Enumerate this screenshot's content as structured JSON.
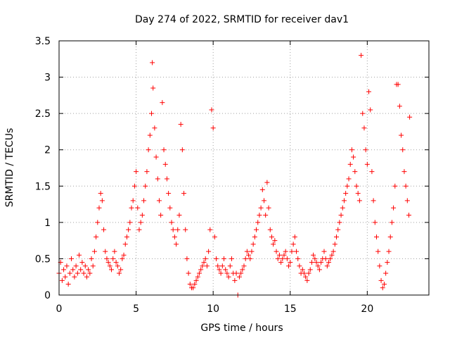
{
  "chart_data": {
    "type": "scatter",
    "title": "Day 274 of 2022, SRMTID for receiver dav1",
    "xlabel": "GPS time / hours",
    "ylabel": "SRMTID / TECUs",
    "xlim": [
      0,
      24
    ],
    "ylim": [
      0,
      3.5
    ],
    "x_ticks": [
      0,
      5,
      10,
      15,
      20
    ],
    "x_tick_labels": [
      "0",
      "5",
      "10",
      "15",
      "20"
    ],
    "y_ticks": [
      0,
      0.5,
      1,
      1.5,
      2,
      2.5,
      3,
      3.5
    ],
    "y_tick_labels": [
      "0",
      "0.5",
      "1",
      "1.5",
      "2",
      "2.5",
      "3",
      "3.5"
    ],
    "grid": true,
    "marker": "plus",
    "marker_color": "#ff0000",
    "series": [
      {
        "name": "SRMTID",
        "points": [
          [
            0.0,
            0.3
          ],
          [
            0.1,
            0.45
          ],
          [
            0.2,
            0.2
          ],
          [
            0.3,
            0.35
          ],
          [
            0.4,
            0.25
          ],
          [
            0.5,
            0.4
          ],
          [
            0.6,
            0.15
          ],
          [
            0.7,
            0.3
          ],
          [
            0.8,
            0.5
          ],
          [
            0.9,
            0.35
          ],
          [
            1.0,
            0.25
          ],
          [
            1.1,
            0.4
          ],
          [
            1.2,
            0.3
          ],
          [
            1.3,
            0.55
          ],
          [
            1.4,
            0.35
          ],
          [
            1.5,
            0.45
          ],
          [
            1.6,
            0.3
          ],
          [
            1.7,
            0.4
          ],
          [
            1.8,
            0.25
          ],
          [
            1.9,
            0.35
          ],
          [
            2.0,
            0.3
          ],
          [
            2.1,
            0.5
          ],
          [
            2.2,
            0.4
          ],
          [
            2.3,
            0.6
          ],
          [
            2.4,
            0.8
          ],
          [
            2.5,
            1.0
          ],
          [
            2.6,
            1.2
          ],
          [
            2.7,
            1.4
          ],
          [
            2.8,
            1.3
          ],
          [
            2.9,
            0.9
          ],
          [
            3.0,
            0.6
          ],
          [
            3.1,
            0.5
          ],
          [
            3.2,
            0.45
          ],
          [
            3.3,
            0.4
          ],
          [
            3.4,
            0.35
          ],
          [
            3.5,
            0.5
          ],
          [
            3.6,
            0.6
          ],
          [
            3.7,
            0.45
          ],
          [
            3.8,
            0.4
          ],
          [
            3.9,
            0.3
          ],
          [
            4.0,
            0.35
          ],
          [
            4.1,
            0.5
          ],
          [
            4.2,
            0.55
          ],
          [
            4.3,
            0.7
          ],
          [
            4.4,
            0.8
          ],
          [
            4.5,
            0.9
          ],
          [
            4.6,
            1.0
          ],
          [
            4.7,
            1.2
          ],
          [
            4.8,
            1.3
          ],
          [
            4.9,
            1.5
          ],
          [
            5.0,
            1.7
          ],
          [
            5.1,
            1.2
          ],
          [
            5.2,
            0.9
          ],
          [
            5.3,
            1.0
          ],
          [
            5.4,
            1.1
          ],
          [
            5.5,
            1.3
          ],
          [
            5.6,
            1.5
          ],
          [
            5.7,
            1.7
          ],
          [
            5.8,
            2.0
          ],
          [
            5.9,
            2.2
          ],
          [
            6.0,
            2.5
          ],
          [
            6.05,
            3.2
          ],
          [
            6.1,
            2.85
          ],
          [
            6.2,
            2.3
          ],
          [
            6.3,
            1.9
          ],
          [
            6.4,
            1.6
          ],
          [
            6.5,
            1.3
          ],
          [
            6.6,
            1.1
          ],
          [
            6.7,
            2.65
          ],
          [
            6.8,
            2.0
          ],
          [
            6.9,
            1.8
          ],
          [
            7.0,
            1.6
          ],
          [
            7.1,
            1.4
          ],
          [
            7.2,
            1.2
          ],
          [
            7.3,
            1.0
          ],
          [
            7.4,
            0.9
          ],
          [
            7.5,
            0.8
          ],
          [
            7.6,
            0.7
          ],
          [
            7.7,
            0.9
          ],
          [
            7.8,
            1.1
          ],
          [
            7.9,
            2.35
          ],
          [
            8.0,
            2.0
          ],
          [
            8.1,
            1.4
          ],
          [
            8.2,
            0.9
          ],
          [
            8.3,
            0.5
          ],
          [
            8.4,
            0.3
          ],
          [
            8.5,
            0.15
          ],
          [
            8.6,
            0.1
          ],
          [
            8.7,
            0.1
          ],
          [
            8.8,
            0.15
          ],
          [
            8.9,
            0.2
          ],
          [
            9.0,
            0.25
          ],
          [
            9.1,
            0.3
          ],
          [
            9.2,
            0.35
          ],
          [
            9.3,
            0.4
          ],
          [
            9.4,
            0.45
          ],
          [
            9.5,
            0.5
          ],
          [
            9.6,
            0.4
          ],
          [
            9.7,
            0.6
          ],
          [
            9.8,
            0.9
          ],
          [
            9.9,
            2.55
          ],
          [
            10.0,
            2.3
          ],
          [
            10.1,
            0.8
          ],
          [
            10.2,
            0.5
          ],
          [
            10.3,
            0.4
          ],
          [
            10.4,
            0.35
          ],
          [
            10.5,
            0.3
          ],
          [
            10.6,
            0.4
          ],
          [
            10.7,
            0.5
          ],
          [
            10.8,
            0.35
          ],
          [
            10.9,
            0.3
          ],
          [
            11.0,
            0.25
          ],
          [
            11.1,
            0.4
          ],
          [
            11.2,
            0.5
          ],
          [
            11.3,
            0.3
          ],
          [
            11.4,
            0.2
          ],
          [
            11.5,
            0.3
          ],
          [
            11.6,
            0.0
          ],
          [
            11.7,
            0.25
          ],
          [
            11.8,
            0.3
          ],
          [
            11.9,
            0.35
          ],
          [
            12.0,
            0.4
          ],
          [
            12.1,
            0.5
          ],
          [
            12.2,
            0.6
          ],
          [
            12.3,
            0.55
          ],
          [
            12.4,
            0.5
          ],
          [
            12.5,
            0.6
          ],
          [
            12.6,
            0.7
          ],
          [
            12.7,
            0.8
          ],
          [
            12.8,
            0.9
          ],
          [
            12.9,
            1.0
          ],
          [
            13.0,
            1.1
          ],
          [
            13.1,
            1.2
          ],
          [
            13.2,
            1.45
          ],
          [
            13.3,
            1.3
          ],
          [
            13.4,
            1.1
          ],
          [
            13.5,
            1.55
          ],
          [
            13.6,
            1.2
          ],
          [
            13.7,
            0.9
          ],
          [
            13.8,
            0.8
          ],
          [
            13.9,
            0.7
          ],
          [
            14.0,
            0.75
          ],
          [
            14.1,
            0.6
          ],
          [
            14.2,
            0.5
          ],
          [
            14.3,
            0.55
          ],
          [
            14.4,
            0.45
          ],
          [
            14.5,
            0.5
          ],
          [
            14.6,
            0.55
          ],
          [
            14.7,
            0.6
          ],
          [
            14.8,
            0.5
          ],
          [
            14.9,
            0.4
          ],
          [
            15.0,
            0.45
          ],
          [
            15.1,
            0.6
          ],
          [
            15.2,
            0.7
          ],
          [
            15.3,
            0.8
          ],
          [
            15.4,
            0.6
          ],
          [
            15.5,
            0.5
          ],
          [
            15.6,
            0.4
          ],
          [
            15.7,
            0.3
          ],
          [
            15.8,
            0.35
          ],
          [
            15.9,
            0.3
          ],
          [
            16.0,
            0.25
          ],
          [
            16.1,
            0.2
          ],
          [
            16.2,
            0.3
          ],
          [
            16.3,
            0.35
          ],
          [
            16.4,
            0.45
          ],
          [
            16.5,
            0.55
          ],
          [
            16.6,
            0.5
          ],
          [
            16.7,
            0.45
          ],
          [
            16.8,
            0.4
          ],
          [
            16.9,
            0.35
          ],
          [
            17.0,
            0.45
          ],
          [
            17.1,
            0.5
          ],
          [
            17.2,
            0.6
          ],
          [
            17.3,
            0.5
          ],
          [
            17.4,
            0.4
          ],
          [
            17.5,
            0.45
          ],
          [
            17.6,
            0.5
          ],
          [
            17.7,
            0.55
          ],
          [
            17.8,
            0.6
          ],
          [
            17.9,
            0.7
          ],
          [
            18.0,
            0.8
          ],
          [
            18.1,
            0.9
          ],
          [
            18.2,
            1.0
          ],
          [
            18.3,
            1.1
          ],
          [
            18.4,
            1.2
          ],
          [
            18.5,
            1.3
          ],
          [
            18.6,
            1.4
          ],
          [
            18.7,
            1.5
          ],
          [
            18.8,
            1.6
          ],
          [
            18.9,
            1.8
          ],
          [
            19.0,
            2.0
          ],
          [
            19.1,
            1.9
          ],
          [
            19.2,
            1.7
          ],
          [
            19.3,
            1.5
          ],
          [
            19.4,
            1.4
          ],
          [
            19.5,
            1.3
          ],
          [
            19.6,
            3.3
          ],
          [
            19.7,
            2.5
          ],
          [
            19.8,
            2.3
          ],
          [
            19.9,
            2.0
          ],
          [
            20.0,
            1.8
          ],
          [
            20.1,
            2.8
          ],
          [
            20.2,
            2.55
          ],
          [
            20.3,
            1.7
          ],
          [
            20.4,
            1.3
          ],
          [
            20.5,
            1.0
          ],
          [
            20.6,
            0.8
          ],
          [
            20.7,
            0.6
          ],
          [
            20.8,
            0.4
          ],
          [
            20.9,
            0.2
          ],
          [
            21.0,
            0.1
          ],
          [
            21.1,
            0.15
          ],
          [
            21.2,
            0.3
          ],
          [
            21.3,
            0.45
          ],
          [
            21.4,
            0.6
          ],
          [
            21.5,
            0.8
          ],
          [
            21.6,
            1.0
          ],
          [
            21.7,
            1.2
          ],
          [
            21.8,
            1.5
          ],
          [
            21.9,
            2.9
          ],
          [
            22.0,
            2.9
          ],
          [
            22.1,
            2.6
          ],
          [
            22.2,
            2.2
          ],
          [
            22.3,
            2.0
          ],
          [
            22.4,
            1.7
          ],
          [
            22.5,
            1.5
          ],
          [
            22.6,
            1.3
          ],
          [
            22.7,
            1.1
          ],
          [
            22.75,
            2.45
          ]
        ]
      }
    ]
  }
}
